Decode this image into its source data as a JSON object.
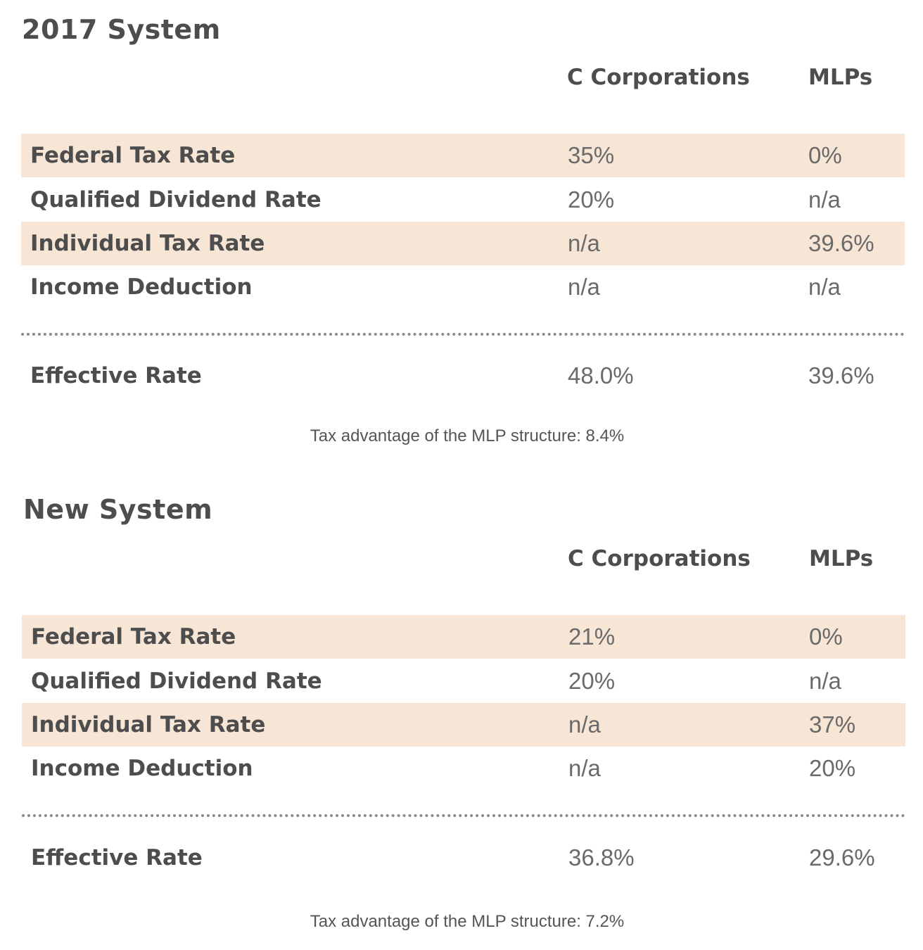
{
  "tables": [
    {
      "title": "2017 System",
      "columns": [
        "C Corporations",
        "MLPs"
      ],
      "rows": [
        {
          "label": "Federal Tax Rate",
          "c_corp": "35%",
          "mlp": "0%"
        },
        {
          "label": "Qualified Dividend Rate",
          "c_corp": "20%",
          "mlp": "n/a"
        },
        {
          "label": "Individual Tax Rate",
          "c_corp": "n/a",
          "mlp": "39.6%"
        },
        {
          "label": "Income Deduction",
          "c_corp": "n/a",
          "mlp": "n/a"
        }
      ],
      "total": {
        "label": "Effective Rate",
        "c_corp": "48.0%",
        "mlp": "39.6%"
      },
      "caption": "Tax advantage of the MLP structure: 8.4%"
    },
    {
      "title": "New System",
      "columns": [
        "C Corporations",
        "MLPs"
      ],
      "rows": [
        {
          "label": "Federal Tax Rate",
          "c_corp": "21%",
          "mlp": "0%"
        },
        {
          "label": "Qualified Dividend Rate",
          "c_corp": "20%",
          "mlp": "n/a"
        },
        {
          "label": "Individual Tax Rate",
          "c_corp": "n/a",
          "mlp": "37%"
        },
        {
          "label": "Income Deduction",
          "c_corp": "n/a",
          "mlp": "20%"
        }
      ],
      "total": {
        "label": "Effective Rate",
        "c_corp": "36.8%",
        "mlp": "29.6%"
      },
      "caption": "Tax advantage of the MLP structure: 7.2%"
    }
  ],
  "colors": {
    "shaded_row": "#f7e5d6",
    "text_dark": "#4d4d4d",
    "text_value": "#6a6a6a"
  }
}
